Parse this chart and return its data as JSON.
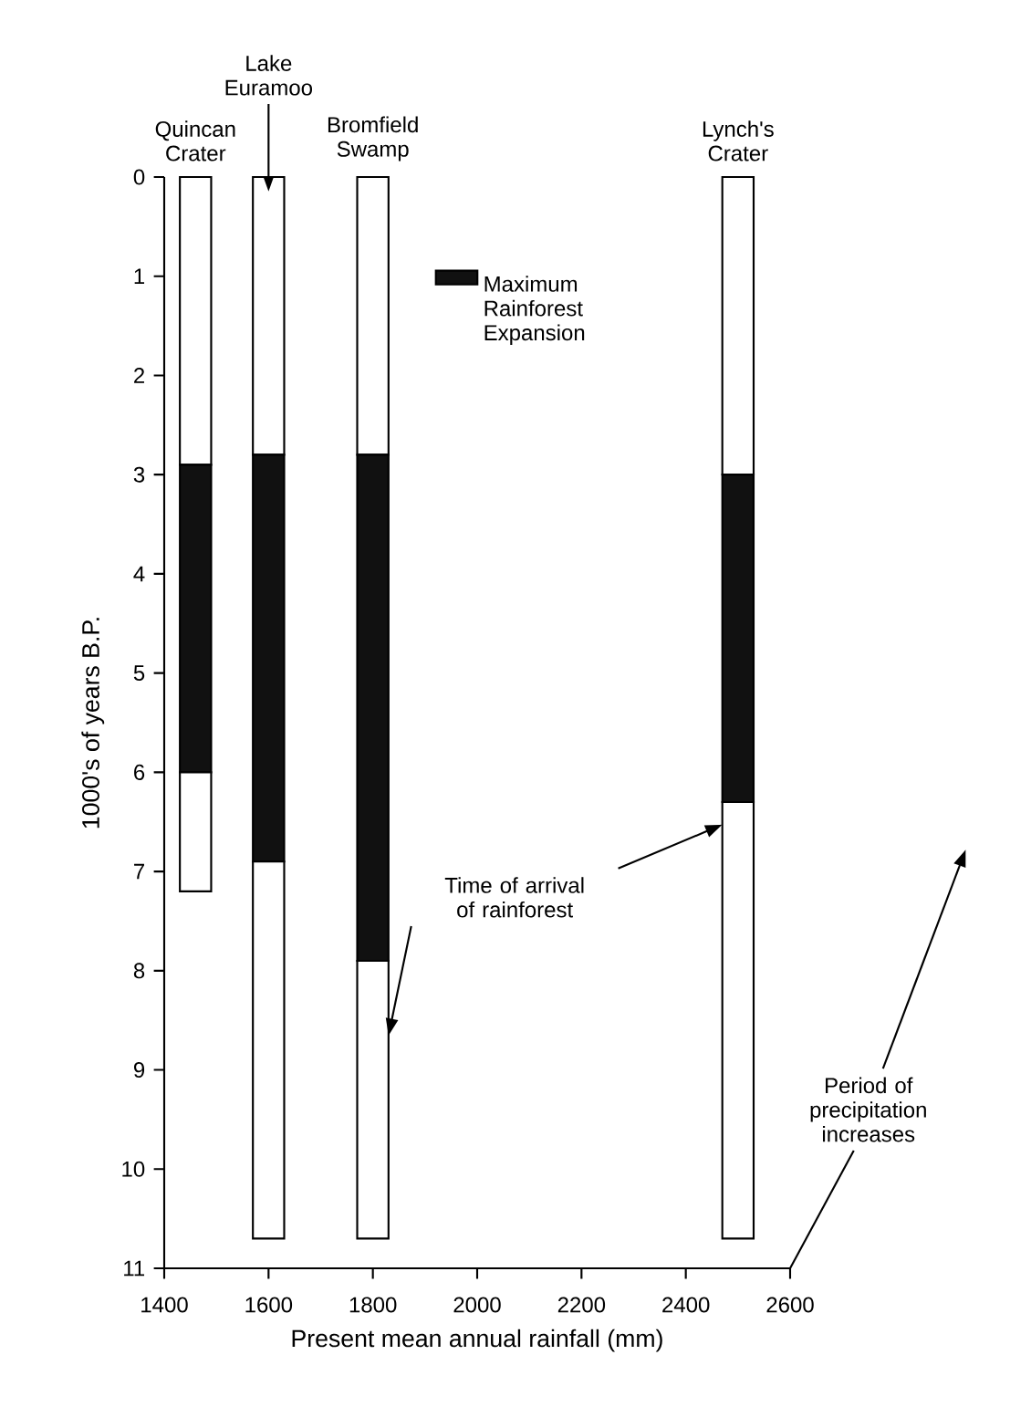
{
  "chart_data": {
    "type": "bar",
    "xlabel": "Present mean annual rainfall (mm)",
    "ylabel": "1000's of years B.P.",
    "x": [
      1460,
      1600,
      1800,
      2500
    ],
    "series": [
      {
        "color": "#ffffff",
        "values": [
          2.9,
          2.8,
          2.8,
          3.0
        ]
      },
      {
        "name": "Maximum Rainforest Expansion",
        "color": "#111111",
        "values": [
          3.1,
          4.1,
          5.1,
          3.3
        ]
      },
      {
        "color": "#ffffff",
        "values": [
          1.2,
          3.8,
          2.8,
          4.4
        ]
      }
    ],
    "stacked": true,
    "annotations": [
      {
        "text": "Quincan Crater",
        "x": 1460,
        "y": 0
      },
      {
        "text": "Lake Euramoo",
        "x": 1600,
        "y": 0
      },
      {
        "text": "Bromfield Swamp",
        "x": 1800,
        "y": 0
      },
      {
        "text": "Lynch's Crater",
        "x": 2500,
        "y": 0
      },
      "Time of arrival of rainforest",
      "Period of precipitation increases"
    ],
    "xlim": [
      1400,
      2600
    ],
    "ylim": [
      11,
      0
    ],
    "xticks": [
      1400,
      1600,
      1800,
      2000,
      2200,
      2400,
      2600
    ],
    "yticks": [
      0,
      1,
      2,
      3,
      4,
      5,
      6,
      7,
      8,
      9,
      10,
      11
    ],
    "legend": "top",
    "grid": false
  }
}
